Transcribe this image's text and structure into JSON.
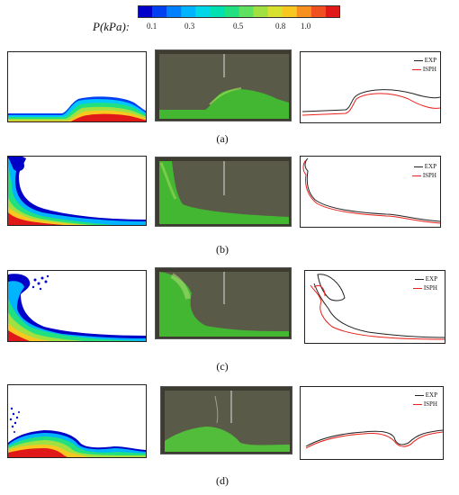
{
  "colorbar": {
    "label": "P(kPa):",
    "ticks": [
      "0.1",
      "0.3",
      "0.5",
      "0.8",
      "1.0"
    ],
    "colors": [
      "#0000c8",
      "#0040f0",
      "#0080ff",
      "#00b4ff",
      "#00d8e8",
      "#00e0b0",
      "#20e080",
      "#60e060",
      "#a0e040",
      "#d8e030",
      "#f8c820",
      "#f89020",
      "#f05020",
      "#e01818"
    ]
  },
  "panels": [
    {
      "label": "(a)"
    },
    {
      "label": "(b)"
    },
    {
      "label": "(c)"
    },
    {
      "label": "(d)"
    }
  ],
  "legend": {
    "exp": "EXP",
    "isph": "ISPH"
  },
  "colors": {
    "exp_line": "#222222",
    "isph_line": "#e8201a",
    "water_green": "#40c030"
  }
}
